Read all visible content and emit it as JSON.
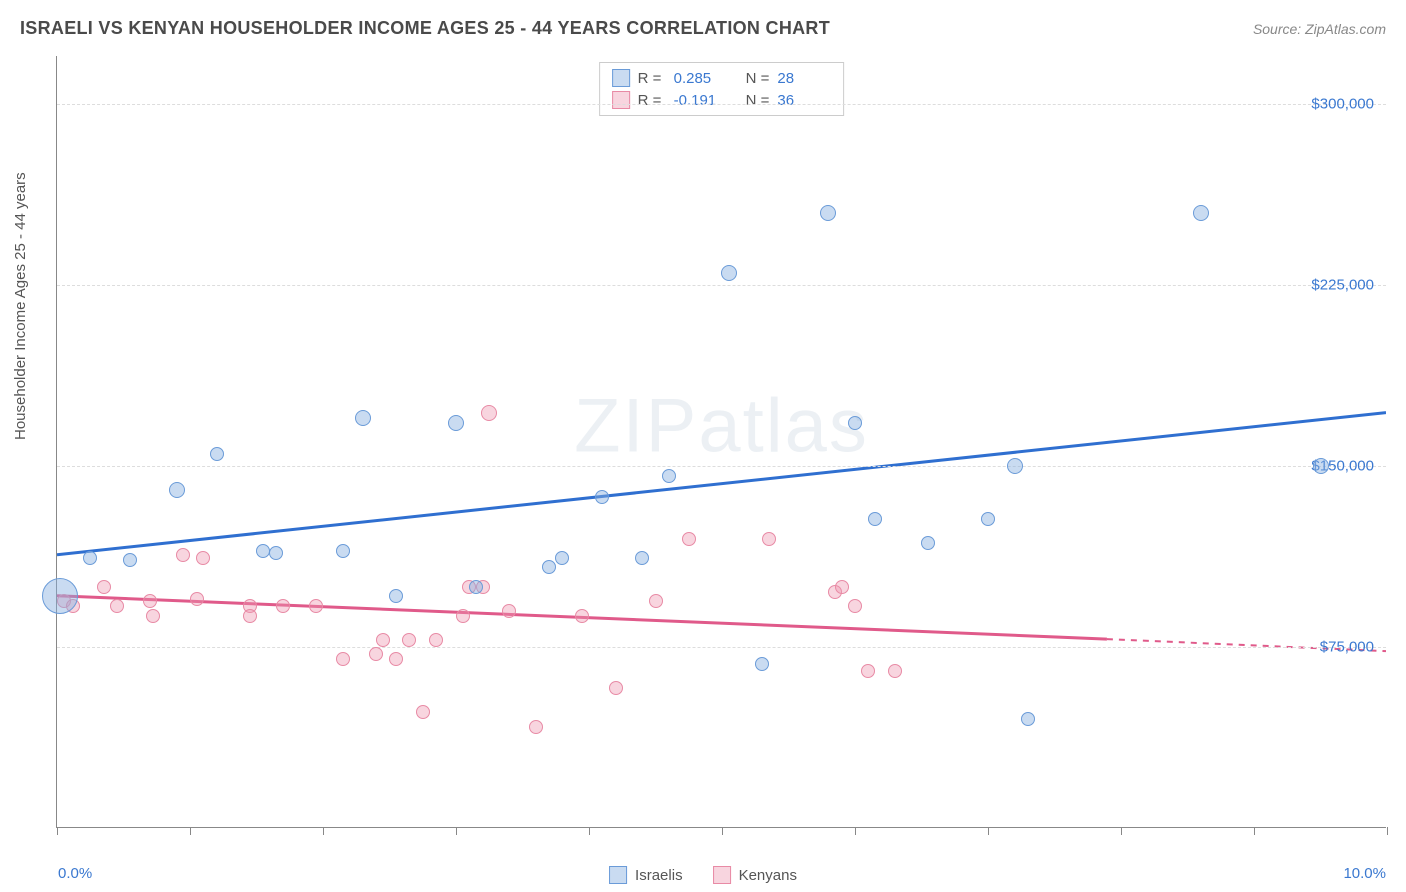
{
  "header": {
    "title": "ISRAELI VS KENYAN HOUSEHOLDER INCOME AGES 25 - 44 YEARS CORRELATION CHART",
    "source_prefix": "Source: ",
    "source": "ZipAtlas.com"
  },
  "watermark": {
    "z": "ZIP",
    "rest": "atlas"
  },
  "chart": {
    "type": "scatter",
    "ylabel": "Householder Income Ages 25 - 44 years",
    "x_axis": {
      "min_pct": 0.0,
      "max_pct": 10.0,
      "min_label": "0.0%",
      "max_label": "10.0%",
      "tick_positions_pct": [
        0,
        1,
        2,
        3,
        4,
        5,
        6,
        7,
        8,
        9,
        10
      ]
    },
    "y_axis": {
      "min": 0,
      "max": 320000,
      "ticks": [
        {
          "v": 75000,
          "label": "$75,000"
        },
        {
          "v": 150000,
          "label": "$150,000"
        },
        {
          "v": 225000,
          "label": "$225,000"
        },
        {
          "v": 300000,
          "label": "$300,000"
        }
      ],
      "grid_color": "#dddddd",
      "label_color": "#3a78d0",
      "label_fontsize": 15
    },
    "series": {
      "israelis": {
        "label": "Israelis",
        "fill": "rgba(136,176,224,0.45)",
        "stroke": "#6a9bd8",
        "line_color": "#2f6fd0",
        "r_label": "R =",
        "r_value": "0.285",
        "n_label": "N =",
        "n_value": "28",
        "trend": {
          "x1_pct": 0.0,
          "y1": 113000,
          "x2_pct": 10.0,
          "y2": 172000
        },
        "points": [
          {
            "x": 0.02,
            "y": 96000,
            "r": 18
          },
          {
            "x": 0.25,
            "y": 112000,
            "r": 7
          },
          {
            "x": 0.55,
            "y": 111000,
            "r": 7
          },
          {
            "x": 0.9,
            "y": 140000,
            "r": 8
          },
          {
            "x": 1.2,
            "y": 155000,
            "r": 7
          },
          {
            "x": 1.55,
            "y": 115000,
            "r": 7
          },
          {
            "x": 1.65,
            "y": 114000,
            "r": 7
          },
          {
            "x": 2.15,
            "y": 115000,
            "r": 7
          },
          {
            "x": 2.3,
            "y": 170000,
            "r": 8
          },
          {
            "x": 2.55,
            "y": 96000,
            "r": 7
          },
          {
            "x": 3.0,
            "y": 168000,
            "r": 8
          },
          {
            "x": 3.15,
            "y": 100000,
            "r": 7
          },
          {
            "x": 3.7,
            "y": 108000,
            "r": 7
          },
          {
            "x": 3.8,
            "y": 112000,
            "r": 7
          },
          {
            "x": 4.1,
            "y": 137000,
            "r": 7
          },
          {
            "x": 4.4,
            "y": 112000,
            "r": 7
          },
          {
            "x": 4.6,
            "y": 146000,
            "r": 7
          },
          {
            "x": 5.05,
            "y": 230000,
            "r": 8
          },
          {
            "x": 5.3,
            "y": 68000,
            "r": 7
          },
          {
            "x": 5.8,
            "y": 255000,
            "r": 8
          },
          {
            "x": 6.0,
            "y": 168000,
            "r": 7
          },
          {
            "x": 6.15,
            "y": 128000,
            "r": 7
          },
          {
            "x": 6.55,
            "y": 118000,
            "r": 7
          },
          {
            "x": 7.0,
            "y": 128000,
            "r": 7
          },
          {
            "x": 7.2,
            "y": 150000,
            "r": 8
          },
          {
            "x": 7.3,
            "y": 45000,
            "r": 7
          },
          {
            "x": 8.6,
            "y": 255000,
            "r": 8
          },
          {
            "x": 9.5,
            "y": 150000,
            "r": 8
          }
        ]
      },
      "kenyans": {
        "label": "Kenyans",
        "fill": "rgba(238,150,175,0.40)",
        "stroke": "#e88aa5",
        "line_color": "#e05a8a",
        "r_label": "R =",
        "r_value": "-0.191",
        "n_label": "N =",
        "n_value": "36",
        "trend": {
          "solid": {
            "x1_pct": 0.0,
            "y1": 96000,
            "x2_pct": 7.9,
            "y2": 78000
          },
          "dashed": {
            "x1_pct": 7.9,
            "y1": 78000,
            "x2_pct": 10.0,
            "y2": 73000
          }
        },
        "points": [
          {
            "x": 0.05,
            "y": 94000,
            "r": 7
          },
          {
            "x": 0.12,
            "y": 92000,
            "r": 7
          },
          {
            "x": 0.35,
            "y": 100000,
            "r": 7
          },
          {
            "x": 0.45,
            "y": 92000,
            "r": 7
          },
          {
            "x": 0.7,
            "y": 94000,
            "r": 7
          },
          {
            "x": 0.72,
            "y": 88000,
            "r": 7
          },
          {
            "x": 0.95,
            "y": 113000,
            "r": 7
          },
          {
            "x": 1.05,
            "y": 95000,
            "r": 7
          },
          {
            "x": 1.1,
            "y": 112000,
            "r": 7
          },
          {
            "x": 1.45,
            "y": 92000,
            "r": 7
          },
          {
            "x": 1.45,
            "y": 88000,
            "r": 7
          },
          {
            "x": 1.7,
            "y": 92000,
            "r": 7
          },
          {
            "x": 1.95,
            "y": 92000,
            "r": 7
          },
          {
            "x": 2.15,
            "y": 70000,
            "r": 7
          },
          {
            "x": 2.4,
            "y": 72000,
            "r": 7
          },
          {
            "x": 2.45,
            "y": 78000,
            "r": 7
          },
          {
            "x": 2.55,
            "y": 70000,
            "r": 7
          },
          {
            "x": 2.65,
            "y": 78000,
            "r": 7
          },
          {
            "x": 2.75,
            "y": 48000,
            "r": 7
          },
          {
            "x": 2.85,
            "y": 78000,
            "r": 7
          },
          {
            "x": 3.05,
            "y": 88000,
            "r": 7
          },
          {
            "x": 3.1,
            "y": 100000,
            "r": 7
          },
          {
            "x": 3.2,
            "y": 100000,
            "r": 7
          },
          {
            "x": 3.25,
            "y": 172000,
            "r": 8
          },
          {
            "x": 3.4,
            "y": 90000,
            "r": 7
          },
          {
            "x": 3.6,
            "y": 42000,
            "r": 7
          },
          {
            "x": 3.95,
            "y": 88000,
            "r": 7
          },
          {
            "x": 4.2,
            "y": 58000,
            "r": 7
          },
          {
            "x": 4.5,
            "y": 94000,
            "r": 7
          },
          {
            "x": 4.75,
            "y": 120000,
            "r": 7
          },
          {
            "x": 5.35,
            "y": 120000,
            "r": 7
          },
          {
            "x": 5.85,
            "y": 98000,
            "r": 7
          },
          {
            "x": 5.9,
            "y": 100000,
            "r": 7
          },
          {
            "x": 6.0,
            "y": 92000,
            "r": 7
          },
          {
            "x": 6.1,
            "y": 65000,
            "r": 7
          },
          {
            "x": 6.3,
            "y": 65000,
            "r": 7
          }
        ]
      }
    }
  }
}
